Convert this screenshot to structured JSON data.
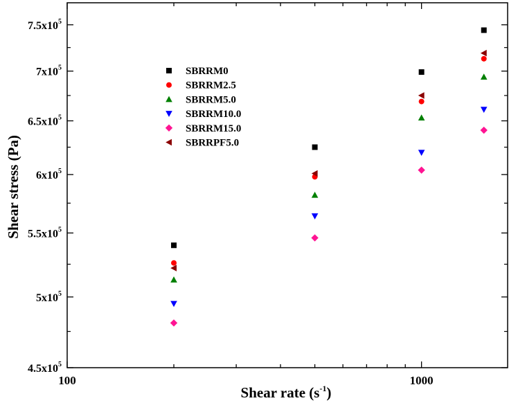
{
  "chart_data": {
    "type": "scatter",
    "title": "",
    "xlabel": {
      "main": "Shear rate (s",
      "sup": "-1",
      "close": ")"
    },
    "ylabel": "Shear stress (Pa)",
    "x_scale": "log",
    "y_scale": "log",
    "xlim": [
      100,
      1750
    ],
    "ylim": [
      450000,
      775000
    ],
    "grid": false,
    "legend_position": "upper-left",
    "x_ticks": [
      {
        "value": 100,
        "label": "100"
      },
      {
        "value": 1000,
        "label": "1000"
      }
    ],
    "y_ticks": [
      {
        "value": 450000,
        "mant": "4.5x10",
        "exp": "5"
      },
      {
        "value": 500000,
        "mant": "5x10",
        "exp": "5"
      },
      {
        "value": 550000,
        "mant": "5.5x10",
        "exp": "5"
      },
      {
        "value": 600000,
        "mant": "6x10",
        "exp": "5"
      },
      {
        "value": 650000,
        "mant": "6.5x10",
        "exp": "5"
      },
      {
        "value": 700000,
        "mant": "7x10",
        "exp": "5"
      },
      {
        "value": 750000,
        "mant": "7.5x10",
        "exp": "5"
      }
    ],
    "x": [
      200,
      500,
      1000,
      1500
    ],
    "series": [
      {
        "name": "SBRRM0",
        "marker": "square",
        "color": "#000000",
        "values": [
          540000,
          625000,
          699000,
          744000
        ]
      },
      {
        "name": "SBRRM2.5",
        "marker": "circle",
        "color": "#ff0000",
        "values": [
          526000,
          598000,
          669000,
          713000
        ]
      },
      {
        "name": "SBRRM5.0",
        "marker": "triangle-up",
        "color": "#008000",
        "values": [
          513000,
          582000,
          653000,
          694000
        ]
      },
      {
        "name": "SBRRM10.0",
        "marker": "triangle-down",
        "color": "#0000ff",
        "values": [
          495000,
          564000,
          620000,
          661000
        ]
      },
      {
        "name": "SBRRM15.0",
        "marker": "diamond",
        "color": "#ff1493",
        "values": [
          481000,
          546000,
          604000,
          641000
        ]
      },
      {
        "name": "SBRRPF5.0",
        "marker": "triangle-left",
        "color": "#8b0000",
        "values": [
          522000,
          601000,
          675000,
          719000
        ]
      }
    ]
  }
}
